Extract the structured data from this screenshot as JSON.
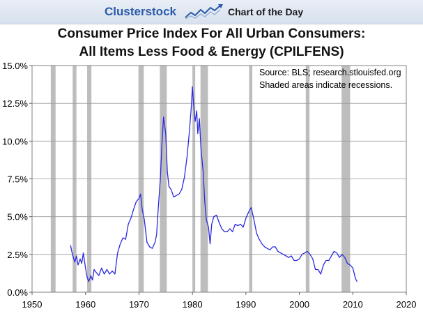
{
  "header": {
    "brand": "Clusterstock",
    "logo_icon": "chart-trend-icon",
    "tagline": "Chart of the Day"
  },
  "chart_data": {
    "type": "line",
    "title": "Consumer Price Index For All Urban Consumers:",
    "title_line2": "All Items Less Food & Energy (CPILFENS)",
    "xlabel": "",
    "ylabel": "",
    "xlim": [
      1950,
      2020
    ],
    "ylim": [
      0,
      15
    ],
    "x_ticks": [
      1950,
      1960,
      1970,
      1980,
      1990,
      2000,
      2010,
      2020
    ],
    "x_tick_labels": [
      "1950",
      "1960",
      "1970",
      "1980",
      "1990",
      "2000",
      "2010",
      "2020"
    ],
    "y_ticks": [
      0,
      2.5,
      5,
      7.5,
      10,
      12.5,
      15
    ],
    "y_tick_labels": [
      "0.0%",
      "2.5%",
      "5.0%",
      "7.5%",
      "10.0%",
      "12.5%",
      "15.0%"
    ],
    "grid": true,
    "annotations": [
      "Source: BLS; research.stlouisfed.org",
      "Shaded areas indicate recessions."
    ],
    "recessions": [
      [
        1953.5,
        1954.4
      ],
      [
        1957.6,
        1958.3
      ],
      [
        1960.3,
        1961.1
      ],
      [
        1969.9,
        1970.9
      ],
      [
        1973.9,
        1975.2
      ],
      [
        1980.0,
        1980.5
      ],
      [
        1981.5,
        1982.9
      ],
      [
        1990.6,
        1991.2
      ],
      [
        2001.2,
        2001.9
      ],
      [
        2007.9,
        2009.5
      ]
    ],
    "colors": {
      "line": "#2a2ae0",
      "recession": "#bdbdbd",
      "grid": "#9a9a9a"
    },
    "series": [
      {
        "x": [
          1957.2,
          1957.5,
          1957.8,
          1958.0,
          1958.3,
          1958.6,
          1959.0,
          1959.3,
          1959.6,
          1960.0,
          1960.3,
          1960.6,
          1961.0,
          1961.3,
          1961.6,
          1962.0,
          1962.5,
          1963.0,
          1963.5,
          1964.0,
          1964.5,
          1965.0,
          1965.5,
          1966.0,
          1966.5,
          1967.0,
          1967.5,
          1968.0,
          1968.5,
          1969.0,
          1969.5,
          1970.0,
          1970.3,
          1970.6,
          1971.0,
          1971.5,
          1972.0,
          1972.5,
          1973.0,
          1973.3,
          1973.6,
          1974.0,
          1974.3,
          1974.6,
          1975.0,
          1975.3,
          1975.6,
          1976.0,
          1976.5,
          1977.0,
          1977.5,
          1978.0,
          1978.5,
          1979.0,
          1979.4,
          1979.8,
          1980.0,
          1980.2,
          1980.5,
          1980.8,
          1981.0,
          1981.3,
          1981.6,
          1982.0,
          1982.3,
          1982.6,
          1983.0,
          1983.3,
          1983.6,
          1984.0,
          1984.5,
          1985.0,
          1985.5,
          1986.0,
          1986.5,
          1987.0,
          1987.5,
          1988.0,
          1988.5,
          1989.0,
          1989.5,
          1990.0,
          1990.5,
          1991.0,
          1991.5,
          1992.0,
          1992.5,
          1993.0,
          1993.5,
          1994.0,
          1994.5,
          1995.0,
          1995.5,
          1996.0,
          1996.5,
          1997.0,
          1997.5,
          1998.0,
          1998.5,
          1999.0,
          1999.5,
          2000.0,
          2000.5,
          2001.0,
          2001.5,
          2002.0,
          2002.5,
          2003.0,
          2003.5,
          2004.0,
          2004.5,
          2005.0,
          2005.5,
          2006.0,
          2006.5,
          2007.0,
          2007.5,
          2008.0,
          2008.5,
          2009.0,
          2009.5,
          2010.0,
          2010.5,
          2010.8
        ],
        "values": [
          3.1,
          2.6,
          2.2,
          2.0,
          2.4,
          1.8,
          2.2,
          1.9,
          2.6,
          1.6,
          1.0,
          0.7,
          1.1,
          0.8,
          1.5,
          1.3,
          1.1,
          1.6,
          1.2,
          1.5,
          1.2,
          1.4,
          1.2,
          2.6,
          3.2,
          3.6,
          3.5,
          4.5,
          4.9,
          5.5,
          6.0,
          6.2,
          6.5,
          5.5,
          4.8,
          3.3,
          3.0,
          2.9,
          3.3,
          3.8,
          5.5,
          7.5,
          9.8,
          11.6,
          10.5,
          8.0,
          7.0,
          6.8,
          6.3,
          6.4,
          6.5,
          6.8,
          7.6,
          9.0,
          10.5,
          12.3,
          13.6,
          12.5,
          11.3,
          12.0,
          10.5,
          11.5,
          9.5,
          8.0,
          6.0,
          4.8,
          4.3,
          3.2,
          4.5,
          5.0,
          5.1,
          4.6,
          4.2,
          4.0,
          4.0,
          4.2,
          4.0,
          4.5,
          4.4,
          4.5,
          4.3,
          4.9,
          5.3,
          5.6,
          4.8,
          3.9,
          3.5,
          3.2,
          3.0,
          2.9,
          2.8,
          3.0,
          3.0,
          2.7,
          2.6,
          2.5,
          2.4,
          2.3,
          2.4,
          2.1,
          2.1,
          2.2,
          2.5,
          2.6,
          2.7,
          2.5,
          2.2,
          1.5,
          1.5,
          1.2,
          1.8,
          2.1,
          2.1,
          2.4,
          2.7,
          2.6,
          2.3,
          2.5,
          2.3,
          1.9,
          1.8,
          1.6,
          0.9,
          0.7
        ]
      }
    ]
  }
}
